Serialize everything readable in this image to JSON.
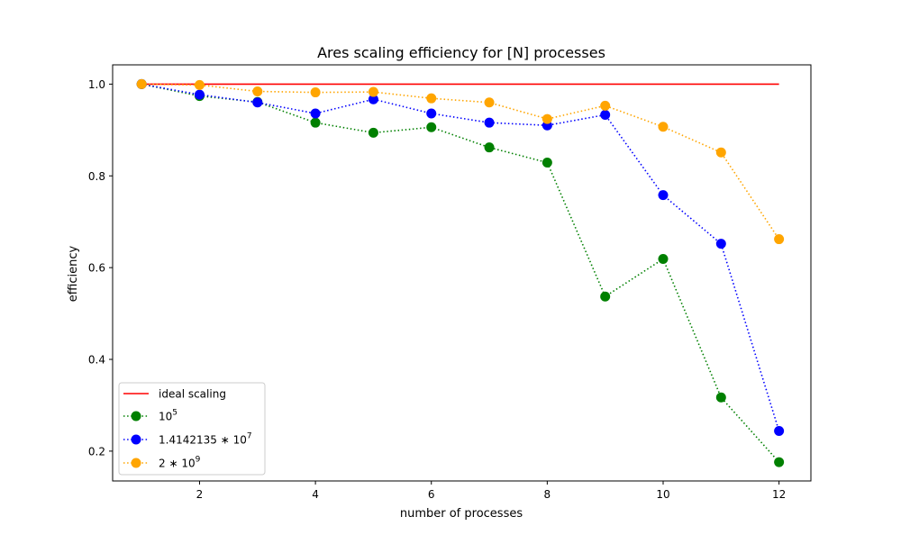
{
  "chart_data": {
    "type": "line",
    "title": "Ares scaling efficiency for [N] processes",
    "xlabel": "number of processes",
    "ylabel": "efficiency",
    "xlim": [
      0.5,
      12.55
    ],
    "ylim": [
      0.135,
      1.042
    ],
    "xticks": [
      2,
      4,
      6,
      8,
      10,
      12
    ],
    "yticks": [
      0.2,
      0.4,
      0.6,
      0.8,
      1.0
    ],
    "xtick_labels": [
      "2",
      "4",
      "6",
      "8",
      "10",
      "12"
    ],
    "ytick_labels": [
      "0.2",
      "0.4",
      "0.6",
      "0.8",
      "1.0"
    ],
    "grid": false,
    "legend_position": "bottom-left",
    "ideal": {
      "name": "ideal scaling",
      "x": [
        1,
        12
      ],
      "values": [
        1.0,
        1.0
      ],
      "color": "#ff0000"
    },
    "x": [
      1,
      2,
      3,
      4,
      5,
      6,
      7,
      8,
      9,
      10,
      11,
      12
    ],
    "series": [
      {
        "name_base": "10",
        "name_sup": "5",
        "color": "#008000",
        "values": [
          1.0,
          0.974,
          0.961,
          0.916,
          0.894,
          0.906,
          0.862,
          0.829,
          0.537,
          0.619,
          0.317,
          0.176
        ]
      },
      {
        "name_base": "1.4142135 ∗ 10",
        "name_sup": "7",
        "color": "#0000ff",
        "values": [
          1.0,
          0.977,
          0.96,
          0.936,
          0.967,
          0.936,
          0.916,
          0.91,
          0.933,
          0.758,
          0.652,
          0.244
        ]
      },
      {
        "name_base": "2 ∗ 10",
        "name_sup": "9",
        "color": "#ffa500",
        "values": [
          1.0,
          0.998,
          0.984,
          0.982,
          0.983,
          0.969,
          0.96,
          0.924,
          0.953,
          0.907,
          0.851,
          0.662
        ]
      }
    ]
  }
}
